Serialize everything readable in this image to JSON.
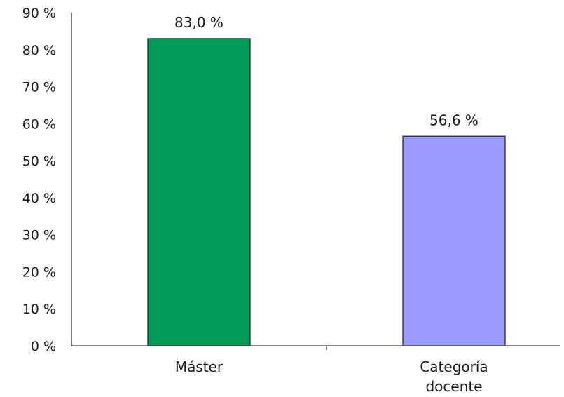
{
  "chart_data": {
    "type": "bar",
    "categories": [
      "Máster",
      "Categoría docente"
    ],
    "values": [
      83.0,
      56.6
    ],
    "value_labels": [
      "83,0 %",
      "56,6 %"
    ],
    "colors": [
      "#009a57",
      "#9999ff"
    ],
    "ylim": [
      0,
      90
    ],
    "yticks": [
      0,
      10,
      20,
      30,
      40,
      50,
      60,
      70,
      80,
      90
    ],
    "ytick_labels": [
      "0 %",
      "10 %",
      "20 %",
      "30 %",
      "40 %",
      "50 %",
      "60 %",
      "70 %",
      "80 %",
      "90 %"
    ],
    "title": "",
    "xlabel": "",
    "ylabel": "",
    "grid": false,
    "legend": "none"
  }
}
